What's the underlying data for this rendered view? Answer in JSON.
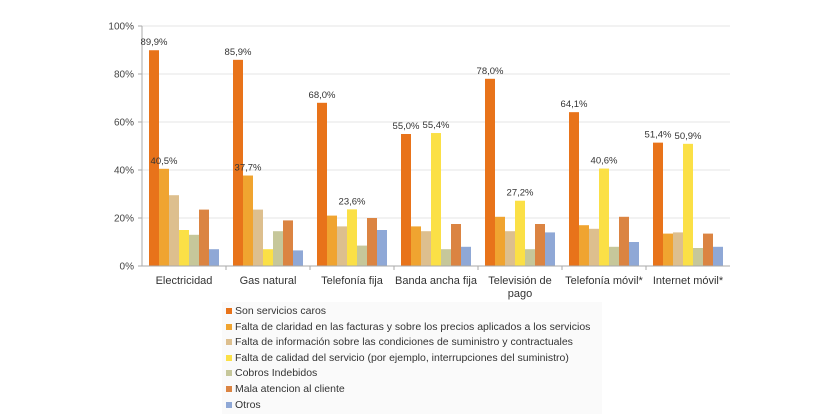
{
  "chart_data": {
    "type": "bar",
    "title": "",
    "xlabel": "",
    "ylabel": "",
    "ylim": [
      0,
      100
    ],
    "yticks": [
      "0%",
      "20%",
      "40%",
      "60%",
      "80%",
      "100%"
    ],
    "ytick_values": [
      0,
      20,
      40,
      60,
      80,
      100
    ],
    "grid": true,
    "legend_position": "bottom",
    "categories": [
      "Electricidad",
      "Gas natural",
      "Telefonía fija",
      "Banda ancha fija",
      "Televisión de pago",
      "Telefonía móvil*",
      "Internet móvil*"
    ],
    "series": [
      {
        "name": "Son servicios caros",
        "color": "#E8731A",
        "values": [
          89.9,
          85.9,
          68.0,
          55.0,
          78.0,
          64.1,
          51.4
        ]
      },
      {
        "name": "Falta de claridad en las facturas y sobre los precios aplicados a los servicios",
        "color": "#F0A430",
        "values": [
          40.5,
          37.7,
          21.0,
          16.5,
          20.5,
          17.0,
          13.5
        ]
      },
      {
        "name": "Falta de información sobre las condiciones de suministro y contractuales",
        "color": "#DDBF8E",
        "values": [
          29.5,
          23.5,
          16.5,
          14.5,
          14.5,
          15.5,
          14.0
        ]
      },
      {
        "name": "Falta de calidad del servicio (por ejemplo, interrupciones del suministro)",
        "color": "#FBE046",
        "values": [
          15.0,
          7.0,
          23.6,
          55.4,
          27.2,
          40.6,
          50.9
        ]
      },
      {
        "name": "Cobros Indebidos",
        "color": "#C6C79A",
        "values": [
          13.0,
          14.5,
          8.5,
          7.0,
          7.0,
          8.0,
          7.5
        ]
      },
      {
        "name": "Mala atencion al cliente",
        "color": "#DB8442",
        "values": [
          23.5,
          19.0,
          20.0,
          17.5,
          17.5,
          20.5,
          13.5
        ]
      },
      {
        "name": "Otros",
        "color": "#8FA8D6",
        "values": [
          7.0,
          6.5,
          15.0,
          8.0,
          14.0,
          10.0,
          8.0
        ]
      }
    ],
    "data_labels": [
      {
        "category": "Electricidad",
        "series": 0,
        "text": "89,9%"
      },
      {
        "category": "Electricidad",
        "series": 1,
        "text": "40,5%"
      },
      {
        "category": "Gas natural",
        "series": 0,
        "text": "85,9%"
      },
      {
        "category": "Gas natural",
        "series": 1,
        "text": "37,7%"
      },
      {
        "category": "Telefonía fija",
        "series": 0,
        "text": "68,0%"
      },
      {
        "category": "Telefonía fija",
        "series": 3,
        "text": "23,6%"
      },
      {
        "category": "Banda ancha fija",
        "series": 0,
        "text": "55,0%"
      },
      {
        "category": "Banda ancha fija",
        "series": 3,
        "text": "55,4%"
      },
      {
        "category": "Televisión de pago",
        "series": 0,
        "text": "78,0%"
      },
      {
        "category": "Televisión de pago",
        "series": 3,
        "text": "27,2%"
      },
      {
        "category": "Telefonía móvil*",
        "series": 0,
        "text": "64,1%"
      },
      {
        "category": "Telefonía móvil*",
        "series": 3,
        "text": "40,6%"
      },
      {
        "category": "Internet móvil*",
        "series": 0,
        "text": "51,4%"
      },
      {
        "category": "Internet móvil*",
        "series": 3,
        "text": "50,9%"
      }
    ]
  }
}
